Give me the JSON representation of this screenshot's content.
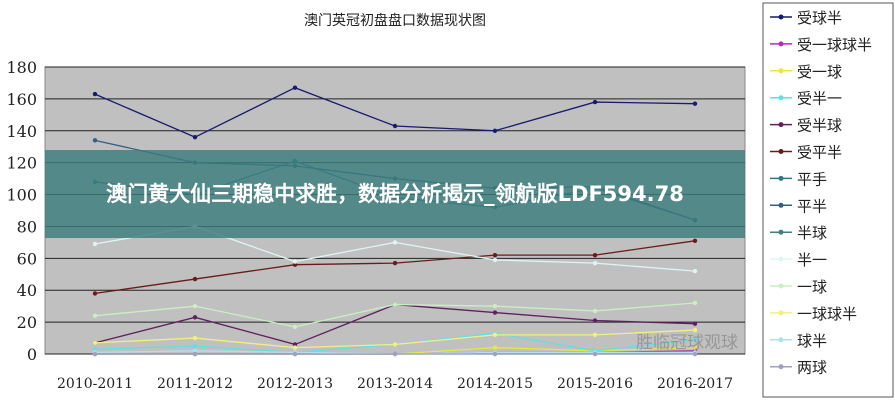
{
  "chart_data": {
    "type": "line",
    "title": "澳门英冠初盘盘口数据现状图",
    "categories": [
      "2010-2011",
      "2011-2012",
      "2012-2013",
      "2013-2014",
      "2014-2015",
      "2015-2016",
      "2016-2017"
    ],
    "ylim": [
      0,
      180
    ],
    "yticks": [
      0,
      20,
      40,
      60,
      80,
      100,
      120,
      140,
      160,
      180
    ],
    "grid": true,
    "legend_position": "right",
    "series": [
      {
        "name": "受球半",
        "color": "#1a1a6e",
        "values": [
          163,
          136,
          167,
          143,
          140,
          158,
          157
        ]
      },
      {
        "name": "受一球球半",
        "color": "#b030b0",
        "values": [
          0,
          0,
          0,
          0,
          1,
          1,
          2
        ]
      },
      {
        "name": "受一球",
        "color": "#e8e840",
        "values": [
          0,
          0,
          0,
          0,
          4,
          2,
          4
        ]
      },
      {
        "name": "受半一",
        "color": "#60e0e0",
        "values": [
          3,
          5,
          1,
          6,
          13,
          2,
          9
        ]
      },
      {
        "name": "受半球",
        "color": "#602060",
        "values": [
          7,
          23,
          6,
          31,
          26,
          21,
          19
        ]
      },
      {
        "name": "受平半",
        "color": "#6a1a1a",
        "values": [
          38,
          47,
          56,
          57,
          62,
          62,
          71
        ]
      },
      {
        "name": "平手",
        "color": "#2a7a8a",
        "values": [
          108,
          100,
          121,
          98,
          92,
          104,
          84
        ]
      },
      {
        "name": "平半",
        "color": "#306080",
        "values": [
          134,
          120,
          118,
          110,
          104,
          105,
          84
        ]
      },
      {
        "name": "半球",
        "color": "#408080",
        "values": [
          0,
          0,
          0,
          0,
          0,
          0,
          0
        ]
      },
      {
        "name": "半一",
        "color": "#e0f4f4",
        "values": [
          69,
          80,
          58,
          70,
          59,
          57,
          52
        ]
      },
      {
        "name": "一球",
        "color": "#c8f0c0",
        "values": [
          24,
          30,
          17,
          31,
          30,
          27,
          32
        ]
      },
      {
        "name": "一球球半",
        "color": "#f0f080",
        "values": [
          7,
          10,
          4,
          6,
          12,
          12,
          15
        ]
      },
      {
        "name": "球半",
        "color": "#b0e0f0",
        "values": [
          1,
          2,
          1,
          0,
          1,
          1,
          1
        ]
      },
      {
        "name": "两球",
        "color": "#a0a0c0",
        "values": [
          0,
          0,
          0,
          0,
          0,
          0,
          0
        ]
      }
    ]
  },
  "overlay": {
    "headline": "澳门黄大仙三期稳中求胜，数据分析揭示_领航版LDF594.78"
  },
  "watermark": "胜临冠球观球"
}
